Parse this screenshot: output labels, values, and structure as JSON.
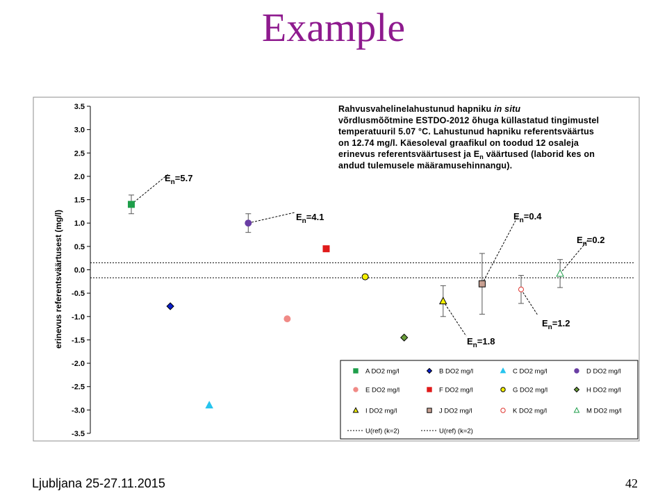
{
  "slide": {
    "title": "Example",
    "title_color": "#8e1a8e",
    "footer": "Ljubljana 25-27.11.2015",
    "page_number": "42"
  },
  "chart_data": {
    "type": "scatter",
    "ylabel": "erinevus referentsväärtusest (mg/l)",
    "ylim": [
      -3.5,
      3.5
    ],
    "yticks": [
      "3.5",
      "3.0",
      "2.5",
      "2.0",
      "1.5",
      "1.0",
      "0.5",
      "0.0",
      "-0.5",
      "-1.0",
      "-1.5",
      "-2.0",
      "-2.5",
      "-3.0",
      "-3.5"
    ],
    "grid": false,
    "description_lines": [
      "Rahvusvahelinelahustunud hapniku in situ",
      "võrdlusmõõtmine ESTDO-2012 õhuga küllastatud tingimustel",
      "temperatuuril 5.07 °C. Lahustunud hapniku referentsväärtus",
      "on 12.74 mg/l. Käesoleval graafikul on toodud 12 osaleja",
      "erinevus referentsväärtusest ja En väärtused (laborid kes on",
      "andud tulemusele määramusehinnangu)."
    ],
    "series": [
      {
        "name": "A DO2 mg/l",
        "x": 1,
        "y": 1.4,
        "err": 0.2,
        "marker": "square",
        "color": "#1e9e4a",
        "filled": true
      },
      {
        "name": "B DO2 mg/l",
        "x": 2,
        "y": -0.78,
        "marker": "diamond",
        "color": "#0a1ecc",
        "filled": true
      },
      {
        "name": "C DO2 mg/l",
        "x": 3,
        "y": -2.9,
        "marker": "triangle",
        "color": "#27c4ee",
        "filled": true
      },
      {
        "name": "D DO2 mg/l",
        "x": 4,
        "y": 1.0,
        "err": 0.2,
        "marker": "circle",
        "color": "#6a3ea4",
        "filled": true
      },
      {
        "name": "E DO2 mg/l",
        "x": 5,
        "y": -1.05,
        "marker": "circle",
        "color": "#f08a86",
        "filled": true
      },
      {
        "name": "F DO2 mg/l",
        "x": 6,
        "y": 0.45,
        "marker": "square",
        "color": "#e01a1a",
        "filled": true
      },
      {
        "name": "G DO2 mg/l",
        "x": 7,
        "y": -0.15,
        "marker": "circle",
        "color": "#f4f000",
        "filled": true
      },
      {
        "name": "H DO2 mg/l",
        "x": 8,
        "y": -1.45,
        "marker": "diamond",
        "color": "#6a9e3a",
        "filled": true
      },
      {
        "name": "I DO2 mg/l",
        "x": 9,
        "y": -0.67,
        "err": 0.33,
        "marker": "triangle",
        "color": "#f4f000",
        "filled": true
      },
      {
        "name": "J DO2 mg/l",
        "x": 10,
        "y": -0.3,
        "err": 0.65,
        "marker": "square",
        "color": "#c8a092",
        "filled": true
      },
      {
        "name": "K DO2 mg/l",
        "x": 11,
        "y": -0.42,
        "err": 0.3,
        "marker": "circle",
        "color": "#e0342e",
        "filled": false
      },
      {
        "name": "M DO2 mg/l",
        "x": 12,
        "y": -0.08,
        "err": 0.3,
        "marker": "triangle",
        "color": "#1e9e4a",
        "filled": false
      }
    ],
    "reference_lines": [
      {
        "name": "U(ref) (k=2)",
        "y": 0.15
      },
      {
        "name": "U(ref) (k=2)",
        "y": -0.17
      }
    ],
    "annotations": [
      {
        "label": "=5.7",
        "for": "A"
      },
      {
        "label": "=4.1",
        "for": "D"
      },
      {
        "label": "=0.4",
        "for": "J"
      },
      {
        "label": "=0.2",
        "for": "M"
      },
      {
        "label": "=1.2",
        "for": "K"
      },
      {
        "label": "=1.8",
        "for": "I"
      }
    ],
    "annotation_prefix": "E",
    "annotation_subscript": "n"
  }
}
